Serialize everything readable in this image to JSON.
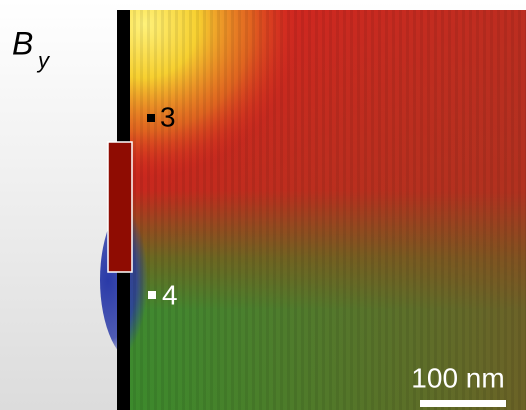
{
  "field_label": {
    "main": "B",
    "sub": "y"
  },
  "markers": [
    {
      "label": "3"
    },
    {
      "label": "4"
    }
  ],
  "scale_bar": {
    "label": "100 nm"
  }
}
